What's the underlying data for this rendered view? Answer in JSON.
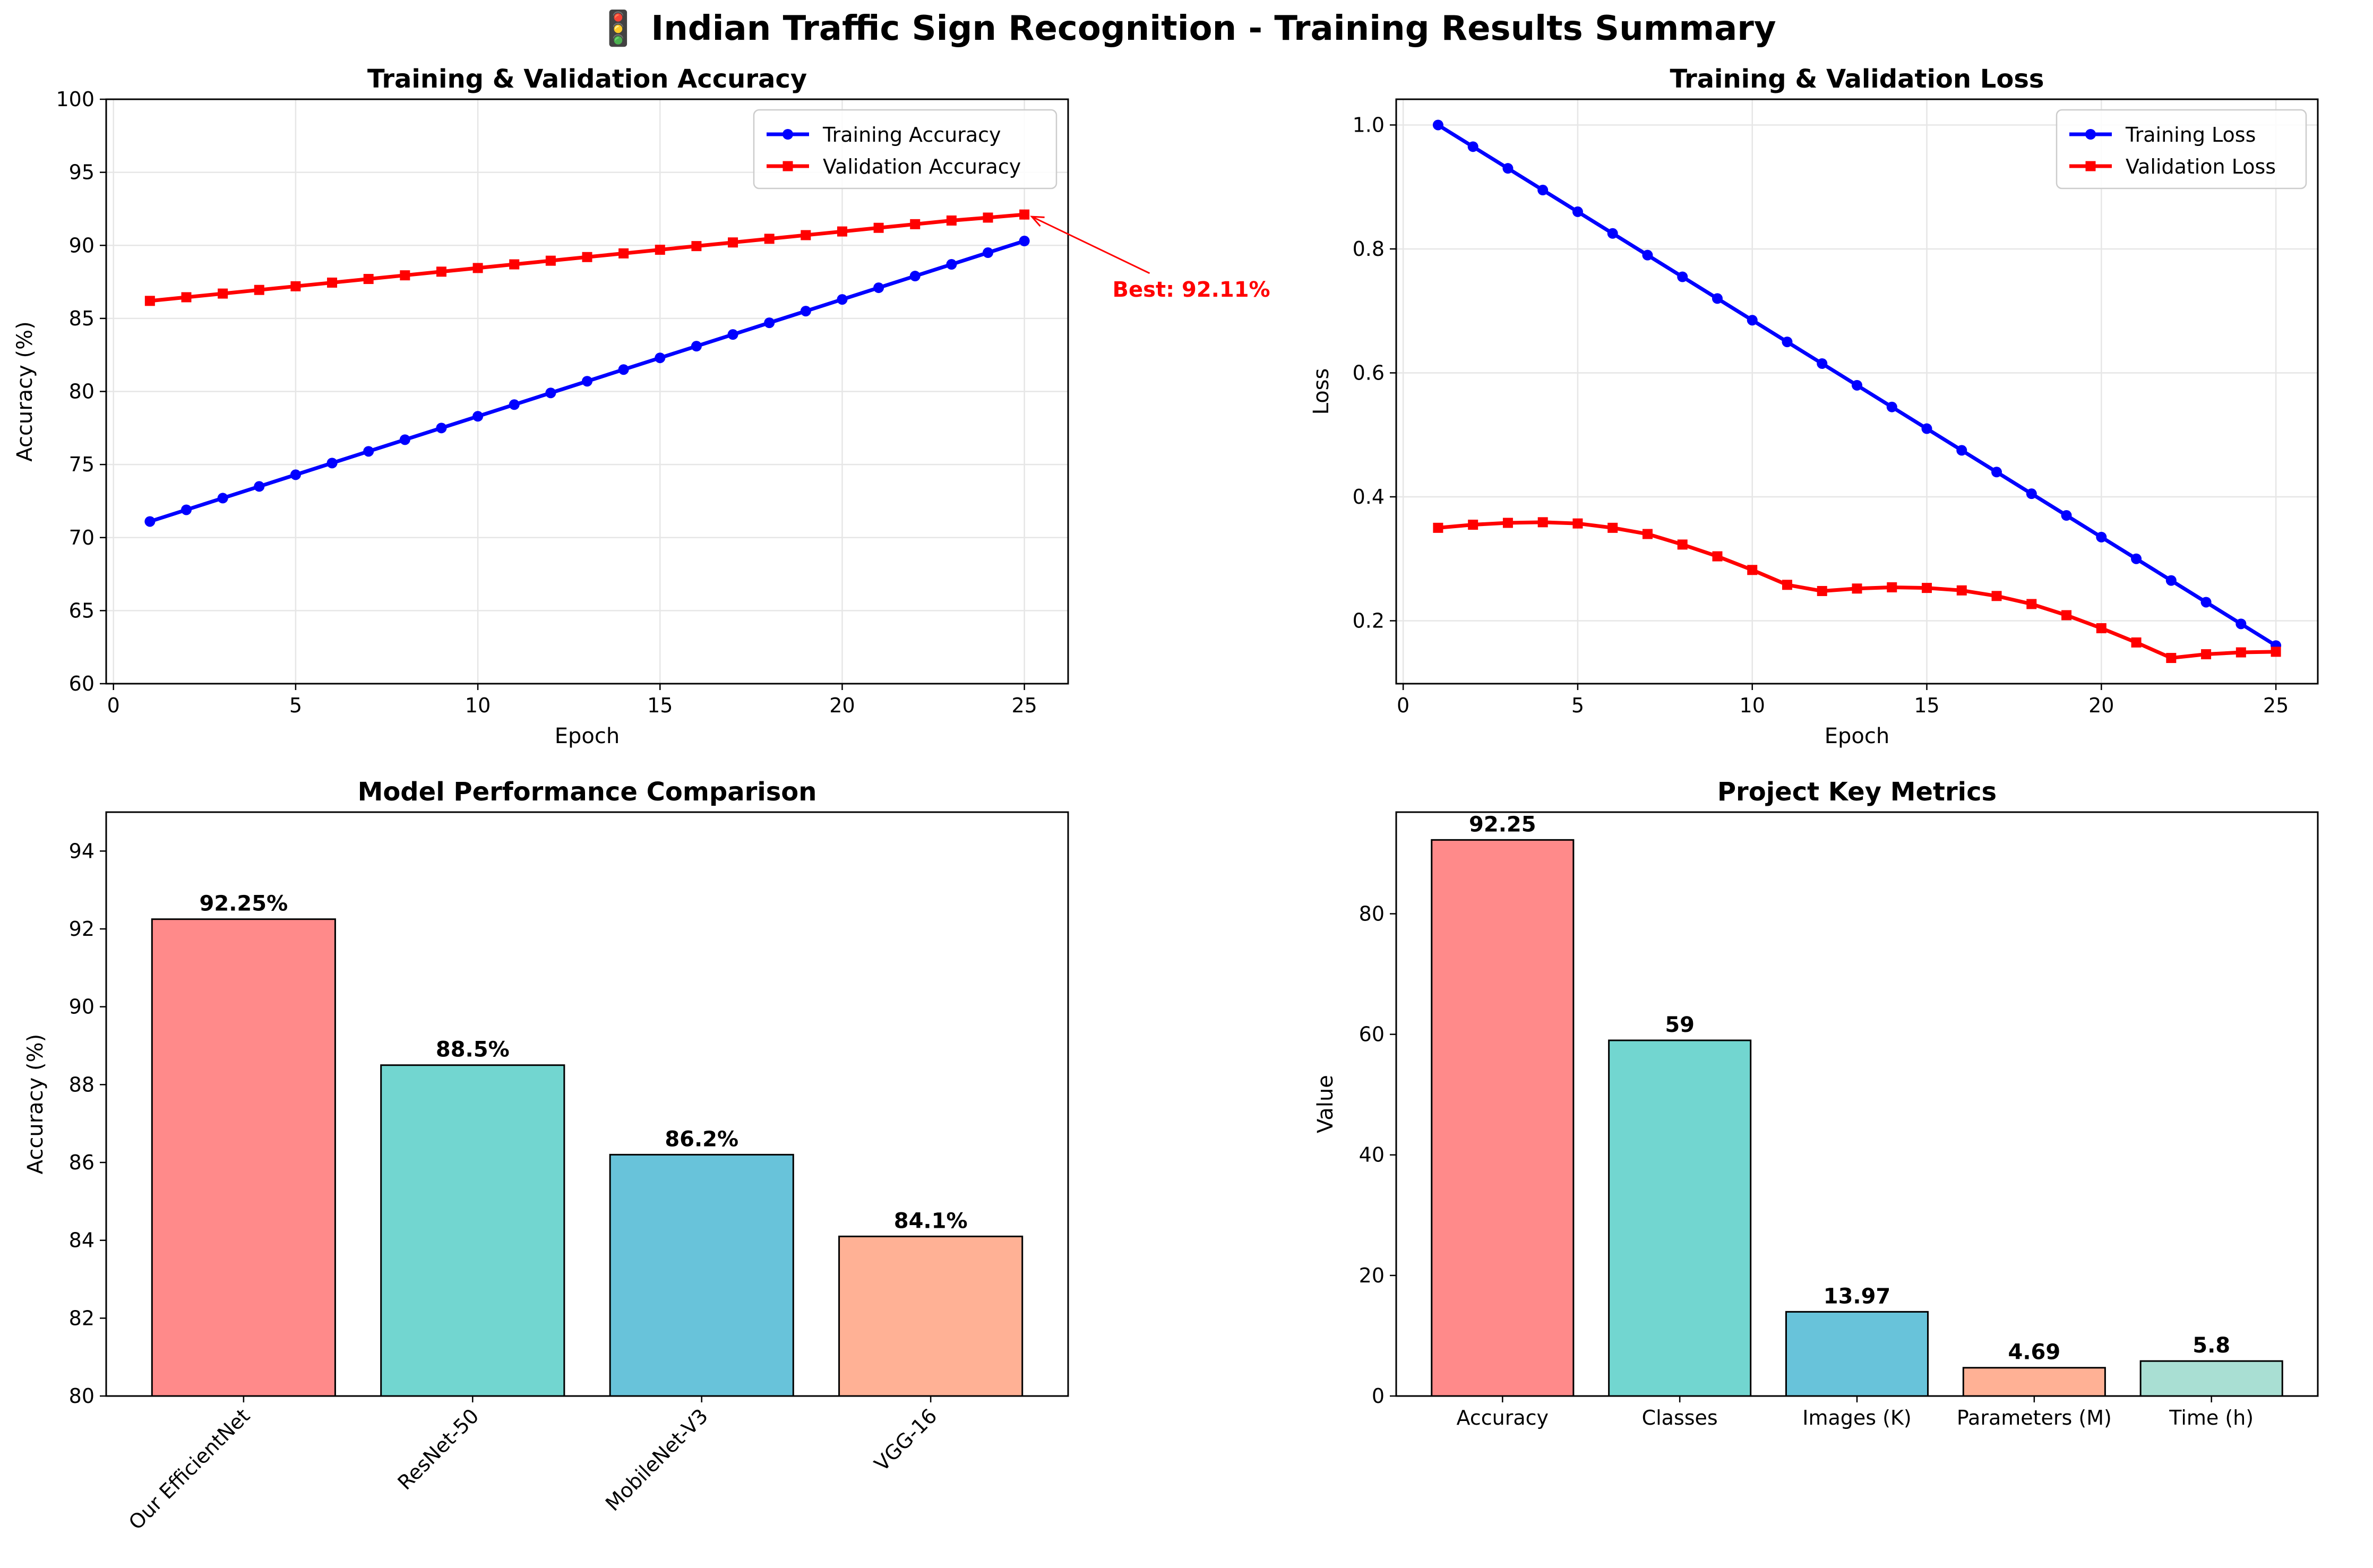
{
  "figure": {
    "title": "🚦 Indian Traffic Sign Recognition - Training Results Summary"
  },
  "colors": {
    "train": "#0000ff",
    "val": "#ff0000",
    "grid": "#e6e6e6",
    "bars": [
      "#ff8a8a",
      "#72d6d0",
      "#68c3da",
      "#ffb195",
      "#a9dfd3"
    ]
  },
  "chart_data": [
    {
      "type": "line",
      "title": "Training & Validation Accuracy",
      "xlabel": "Epoch",
      "ylabel": "Accuracy (%)",
      "xlim": [
        -0.2,
        26.2
      ],
      "ylim": [
        60,
        100
      ],
      "xticks": [
        0,
        5,
        10,
        15,
        20,
        25
      ],
      "yticks": [
        60,
        65,
        70,
        75,
        80,
        85,
        90,
        95,
        100
      ],
      "grid": true,
      "legend": "top-right",
      "x": [
        1,
        2,
        3,
        4,
        5,
        6,
        7,
        8,
        9,
        10,
        11,
        12,
        13,
        14,
        15,
        16,
        17,
        18,
        19,
        20,
        21,
        22,
        23,
        24,
        25
      ],
      "series": [
        {
          "name": "Training Accuracy",
          "marker": "circle",
          "values": [
            71.1,
            71.9,
            72.7,
            73.5,
            74.3,
            75.1,
            75.9,
            76.7,
            77.5,
            78.3,
            79.1,
            79.9,
            80.7,
            81.5,
            82.3,
            83.1,
            83.9,
            84.7,
            85.5,
            86.3,
            87.1,
            87.9,
            88.7,
            89.5,
            90.3
          ]
        },
        {
          "name": "Validation Accuracy",
          "marker": "square",
          "values": [
            86.2,
            86.45,
            86.7,
            86.95,
            87.2,
            87.45,
            87.7,
            87.95,
            88.2,
            88.45,
            88.7,
            88.95,
            89.2,
            89.45,
            89.7,
            89.95,
            90.2,
            90.45,
            90.7,
            90.95,
            91.2,
            91.45,
            91.7,
            91.9,
            92.11
          ]
        }
      ],
      "annotation": {
        "text": "Best: 92.11%",
        "x": 25,
        "y": 92.11,
        "text_x": 28.0,
        "text_y": 87.0
      }
    },
    {
      "type": "line",
      "title": "Training & Validation Loss",
      "xlabel": "Epoch",
      "ylabel": "Loss",
      "xlim": [
        -0.2,
        26.2
      ],
      "ylim": [
        0.0985,
        1.0415
      ],
      "xticks": [
        0,
        5,
        10,
        15,
        20,
        25
      ],
      "yticks": [
        0.2,
        0.4,
        0.6,
        0.8,
        1.0
      ],
      "ytick_labels": [
        "0.2",
        "0.4",
        "0.6",
        "0.8",
        "1.0"
      ],
      "grid": true,
      "legend": "top-right",
      "x": [
        1,
        2,
        3,
        4,
        5,
        6,
        7,
        8,
        9,
        10,
        11,
        12,
        13,
        14,
        15,
        16,
        17,
        18,
        19,
        20,
        21,
        22,
        23,
        24,
        25
      ],
      "series": [
        {
          "name": "Training Loss",
          "marker": "circle",
          "values": [
            1.0,
            0.965,
            0.93,
            0.895,
            0.86,
            0.825,
            0.79,
            0.755,
            0.72,
            0.685,
            0.65,
            0.615,
            0.58,
            0.545,
            0.51,
            0.475,
            0.44,
            0.405,
            0.37,
            0.335,
            0.3,
            0.265,
            0.23,
            0.195,
            0.16
          ]
        },
        {
          "name": "Validation Loss",
          "marker": "square",
          "values": [
            0.35,
            0.355,
            0.358,
            0.359,
            0.357,
            0.35,
            0.34,
            0.323,
            0.304,
            0.282,
            0.258,
            0.248,
            0.252,
            0.254,
            0.253,
            0.249,
            0.24,
            0.227,
            0.209,
            0.188,
            0.165,
            0.14,
            0.146,
            0.149,
            0.15
          ]
        }
      ]
    },
    {
      "type": "bar",
      "title": "Model Performance Comparison",
      "xlabel": "",
      "ylabel": "Accuracy (%)",
      "ylim": [
        80,
        95
      ],
      "yticks": [
        80,
        82,
        84,
        86,
        88,
        90,
        92,
        94
      ],
      "categories": [
        "Our EfficientNet",
        "ResNet-50",
        "MobileNet-V3",
        "VGG-16"
      ],
      "values": [
        92.25,
        88.5,
        86.2,
        84.1
      ],
      "value_labels": [
        "92.25%",
        "88.5%",
        "86.2%",
        "84.1%"
      ],
      "xtick_rotation": 45
    },
    {
      "type": "bar",
      "title": "Project Key Metrics",
      "xlabel": "",
      "ylabel": "Value",
      "ylim": [
        0,
        96.86
      ],
      "yticks": [
        0,
        20,
        40,
        60,
        80
      ],
      "categories": [
        "Accuracy",
        "Classes",
        "Images (K)",
        "Parameters (M)",
        "Time (h)"
      ],
      "values": [
        92.25,
        59,
        13.97,
        4.69,
        5.8
      ],
      "value_labels": [
        "92.25",
        "59",
        "13.97",
        "4.69",
        "5.8"
      ]
    }
  ]
}
